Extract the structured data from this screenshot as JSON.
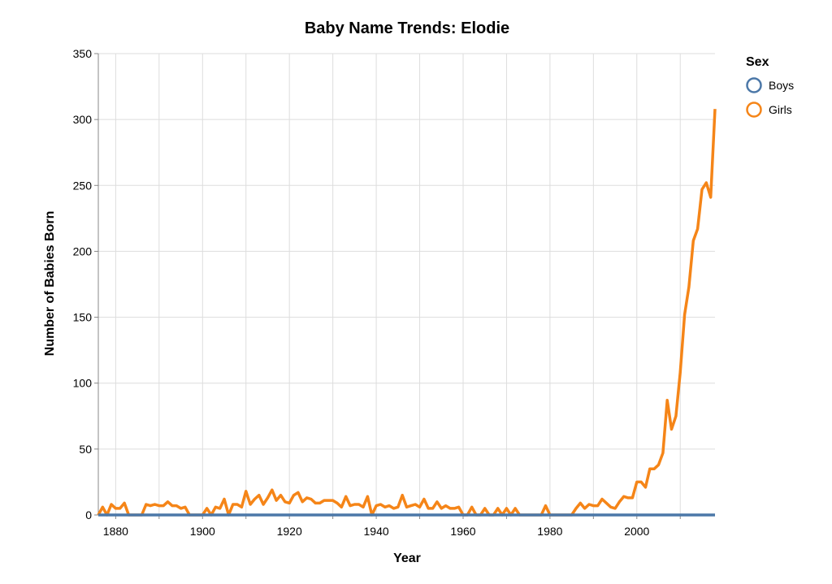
{
  "chart_data": {
    "type": "line",
    "title": "Baby Name Trends: Elodie",
    "xlabel": "Year",
    "ylabel": "Number of Babies Born",
    "xlim": [
      1876,
      2018
    ],
    "ylim": [
      0,
      350
    ],
    "x_ticks": [
      1880,
      1900,
      1920,
      1940,
      1960,
      1980,
      2000
    ],
    "y_ticks": [
      0,
      50,
      100,
      150,
      200,
      250,
      300,
      350
    ],
    "grid": true,
    "legend": {
      "title": "Sex",
      "position": "top-right"
    },
    "series": [
      {
        "name": "Boys",
        "color": "#4c78a8",
        "points": [
          [
            1876,
            0
          ],
          [
            2018,
            0
          ]
        ]
      },
      {
        "name": "Girls",
        "color": "#f58518",
        "points": [
          [
            1876,
            0
          ],
          [
            1877,
            6
          ],
          [
            1878,
            0
          ],
          [
            1879,
            8
          ],
          [
            1880,
            5
          ],
          [
            1881,
            5
          ],
          [
            1882,
            9
          ],
          [
            1883,
            0
          ],
          [
            1884,
            0
          ],
          [
            1885,
            0
          ],
          [
            1886,
            0
          ],
          [
            1887,
            8
          ],
          [
            1888,
            7
          ],
          [
            1889,
            8
          ],
          [
            1890,
            7
          ],
          [
            1891,
            7
          ],
          [
            1892,
            10
          ],
          [
            1893,
            7
          ],
          [
            1894,
            7
          ],
          [
            1895,
            5
          ],
          [
            1896,
            6
          ],
          [
            1897,
            0
          ],
          [
            1898,
            0
          ],
          [
            1899,
            0
          ],
          [
            1900,
            0
          ],
          [
            1901,
            5
          ],
          [
            1902,
            0
          ],
          [
            1903,
            6
          ],
          [
            1904,
            5
          ],
          [
            1905,
            12
          ],
          [
            1906,
            0
          ],
          [
            1907,
            8
          ],
          [
            1908,
            8
          ],
          [
            1909,
            6
          ],
          [
            1910,
            18
          ],
          [
            1911,
            8
          ],
          [
            1912,
            12
          ],
          [
            1913,
            15
          ],
          [
            1914,
            8
          ],
          [
            1915,
            13
          ],
          [
            1916,
            19
          ],
          [
            1917,
            11
          ],
          [
            1918,
            15
          ],
          [
            1919,
            10
          ],
          [
            1920,
            9
          ],
          [
            1921,
            15
          ],
          [
            1922,
            17
          ],
          [
            1923,
            10
          ],
          [
            1924,
            13
          ],
          [
            1925,
            12
          ],
          [
            1926,
            9
          ],
          [
            1927,
            9
          ],
          [
            1928,
            11
          ],
          [
            1929,
            11
          ],
          [
            1930,
            11
          ],
          [
            1931,
            9
          ],
          [
            1932,
            6
          ],
          [
            1933,
            14
          ],
          [
            1934,
            7
          ],
          [
            1935,
            8
          ],
          [
            1936,
            8
          ],
          [
            1937,
            6
          ],
          [
            1938,
            14
          ],
          [
            1939,
            0
          ],
          [
            1940,
            7
          ],
          [
            1941,
            8
          ],
          [
            1942,
            6
          ],
          [
            1943,
            7
          ],
          [
            1944,
            5
          ],
          [
            1945,
            6
          ],
          [
            1946,
            15
          ],
          [
            1947,
            6
          ],
          [
            1948,
            7
          ],
          [
            1949,
            8
          ],
          [
            1950,
            6
          ],
          [
            1951,
            12
          ],
          [
            1952,
            5
          ],
          [
            1953,
            5
          ],
          [
            1954,
            10
          ],
          [
            1955,
            5
          ],
          [
            1956,
            7
          ],
          [
            1957,
            5
          ],
          [
            1958,
            5
          ],
          [
            1959,
            6
          ],
          [
            1960,
            0
          ],
          [
            1961,
            0
          ],
          [
            1962,
            6
          ],
          [
            1963,
            0
          ],
          [
            1964,
            0
          ],
          [
            1965,
            5
          ],
          [
            1966,
            0
          ],
          [
            1967,
            0
          ],
          [
            1968,
            5
          ],
          [
            1969,
            0
          ],
          [
            1970,
            5
          ],
          [
            1971,
            0
          ],
          [
            1972,
            5
          ],
          [
            1973,
            0
          ],
          [
            1974,
            0
          ],
          [
            1975,
            0
          ],
          [
            1976,
            0
          ],
          [
            1977,
            0
          ],
          [
            1978,
            0
          ],
          [
            1979,
            7
          ],
          [
            1980,
            0
          ],
          [
            1981,
            0
          ],
          [
            1982,
            0
          ],
          [
            1983,
            0
          ],
          [
            1984,
            0
          ],
          [
            1985,
            0
          ],
          [
            1986,
            5
          ],
          [
            1987,
            9
          ],
          [
            1988,
            5
          ],
          [
            1989,
            8
          ],
          [
            1990,
            7
          ],
          [
            1991,
            7
          ],
          [
            1992,
            12
          ],
          [
            1993,
            9
          ],
          [
            1994,
            6
          ],
          [
            1995,
            5
          ],
          [
            1996,
            10
          ],
          [
            1997,
            14
          ],
          [
            1998,
            13
          ],
          [
            1999,
            13
          ],
          [
            2000,
            25
          ],
          [
            2001,
            25
          ],
          [
            2002,
            21
          ],
          [
            2003,
            35
          ],
          [
            2004,
            35
          ],
          [
            2005,
            38
          ],
          [
            2006,
            47
          ],
          [
            2007,
            87
          ],
          [
            2008,
            65
          ],
          [
            2009,
            75
          ],
          [
            2010,
            108
          ],
          [
            2011,
            152
          ],
          [
            2012,
            173
          ],
          [
            2013,
            208
          ],
          [
            2014,
            217
          ],
          [
            2015,
            247
          ],
          [
            2016,
            252
          ],
          [
            2017,
            241
          ],
          [
            2018,
            308
          ]
        ]
      }
    ]
  }
}
